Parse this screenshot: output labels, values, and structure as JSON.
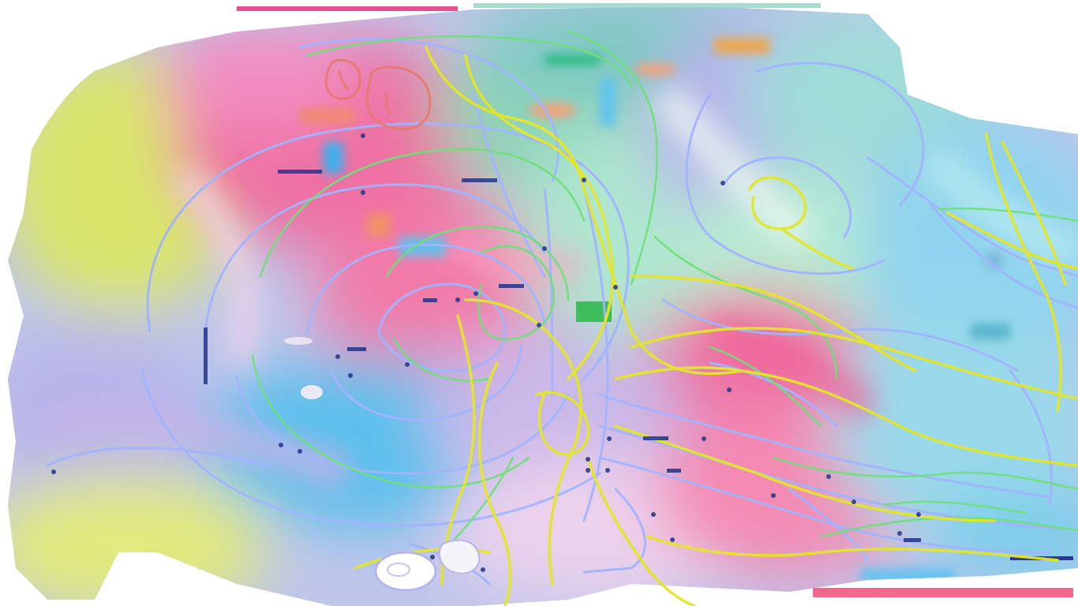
{
  "artwork": {
    "palette": {
      "yellow_lime": "#d9e66a",
      "pink": "#ee6fa2",
      "hot_pink": "#e8508a",
      "lavender": "#b7b4ec",
      "periwinkle": "#9fa6f4",
      "light_blue": "#8fd3ee",
      "sky_blue": "#5cc0ec",
      "teal": "#7fc9c4",
      "mint": "#aee6cf",
      "salmon": "#f0a37b",
      "bright_green": "#39c25a",
      "navy_marks": "#2a3b8f",
      "yellow_line": "#e4e62a",
      "green_line": "#6fe07a",
      "blue_line": "#a2b4ff",
      "coral_line": "#e8786e"
    },
    "layers": [
      "blurred-color-field",
      "periwinkle-contour-lines",
      "green-contour-lines",
      "yellow-contour-lines",
      "coral-scribbles",
      "navy-dash-marks",
      "white-cutout-blobs"
    ]
  }
}
